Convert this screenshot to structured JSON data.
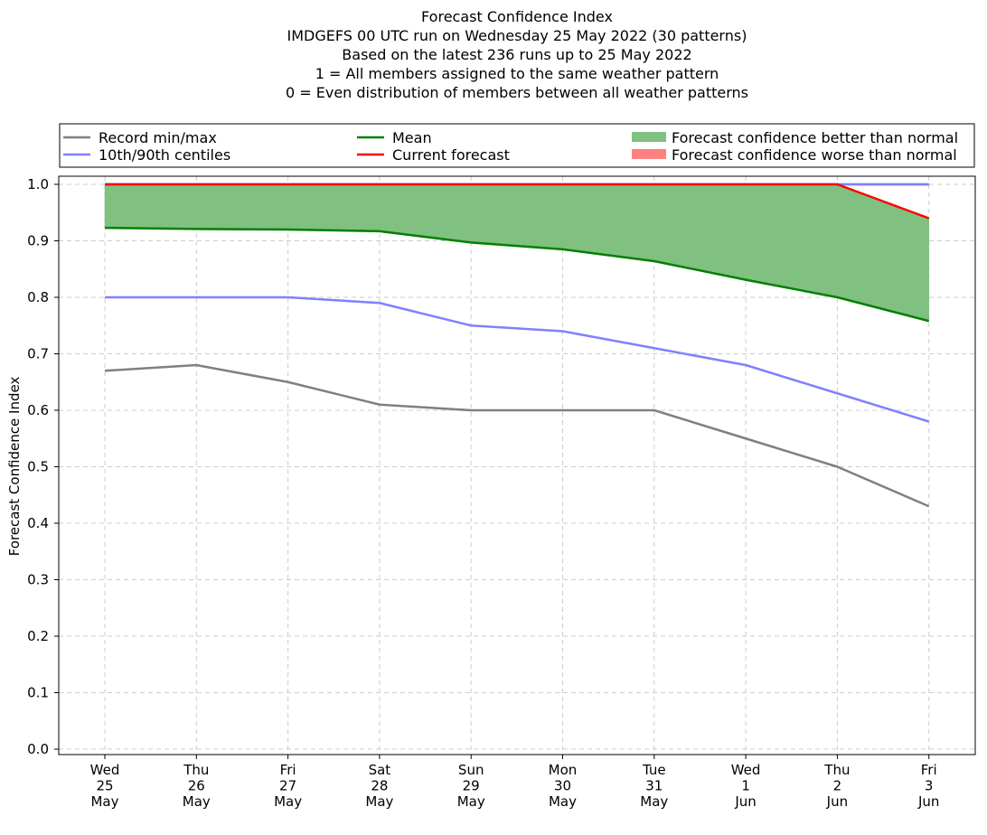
{
  "chart_data": {
    "type": "line",
    "title_lines": [
      "Forecast Confidence Index",
      "IMDGEFS 00 UTC run on Wednesday 25 May 2022 (30 patterns)",
      "Based on the latest 236 runs up to 25 May 2022",
      "1 = All members assigned to the same weather pattern",
      "0 = Even distribution of members between all weather patterns"
    ],
    "ylabel": "Forecast Confidence Index",
    "xlabel": "",
    "categories": [
      [
        "Wed",
        "25",
        "May"
      ],
      [
        "Thu",
        "26",
        "May"
      ],
      [
        "Fri",
        "27",
        "May"
      ],
      [
        "Sat",
        "28",
        "May"
      ],
      [
        "Sun",
        "29",
        "May"
      ],
      [
        "Mon",
        "30",
        "May"
      ],
      [
        "Tue",
        "31",
        "May"
      ],
      [
        "Wed",
        "1",
        "Jun"
      ],
      [
        "Thu",
        "2",
        "Jun"
      ],
      [
        "Fri",
        "3",
        "Jun"
      ]
    ],
    "ylim": [
      0.0,
      1.0
    ],
    "yticks": [
      "0.0",
      "0.1",
      "0.2",
      "0.3",
      "0.4",
      "0.5",
      "0.6",
      "0.7",
      "0.8",
      "0.9",
      "1.0"
    ],
    "grid": true,
    "legend": {
      "placement": "top",
      "entries": [
        {
          "label": "Record min/max",
          "kind": "line",
          "color": "#808080"
        },
        {
          "label": "10th/90th centiles",
          "kind": "line",
          "color": "#8080ff"
        },
        {
          "label": "Mean",
          "kind": "line",
          "color": "#008000"
        },
        {
          "label": "Current forecast",
          "kind": "line",
          "color": "#ff0000"
        },
        {
          "label": "Forecast confidence better than normal",
          "kind": "patch",
          "color": "#80c080"
        },
        {
          "label": "Forecast confidence worse than normal",
          "kind": "patch",
          "color": "#ff8080"
        }
      ]
    },
    "series": [
      {
        "name": "Record min/max",
        "role": "record_max",
        "color": "#808080",
        "values": [
          1.0,
          1.0,
          1.0,
          1.0,
          1.0,
          1.0,
          1.0,
          1.0,
          1.0,
          1.0
        ]
      },
      {
        "name": "Record min/max",
        "role": "record_min",
        "color": "#808080",
        "values": [
          0.67,
          0.68,
          0.65,
          0.61,
          0.6,
          0.6,
          0.6,
          0.55,
          0.5,
          0.43
        ]
      },
      {
        "name": "10th/90th centiles",
        "role": "p90",
        "color": "#8080ff",
        "values": [
          1.0,
          1.0,
          1.0,
          1.0,
          1.0,
          1.0,
          1.0,
          1.0,
          1.0,
          1.0
        ]
      },
      {
        "name": "10th/90th centiles",
        "role": "p10",
        "color": "#8080ff",
        "values": [
          0.8,
          0.8,
          0.8,
          0.79,
          0.75,
          0.74,
          0.71,
          0.68,
          0.63,
          0.58
        ]
      },
      {
        "name": "Mean",
        "role": "mean",
        "color": "#008000",
        "values": [
          0.923,
          0.921,
          0.92,
          0.917,
          0.897,
          0.885,
          0.864,
          0.831,
          0.8,
          0.758
        ]
      },
      {
        "name": "Current forecast",
        "role": "current",
        "color": "#ff0000",
        "values": [
          1.0,
          1.0,
          1.0,
          1.0,
          1.0,
          1.0,
          1.0,
          1.0,
          1.0,
          0.94
        ]
      }
    ]
  }
}
